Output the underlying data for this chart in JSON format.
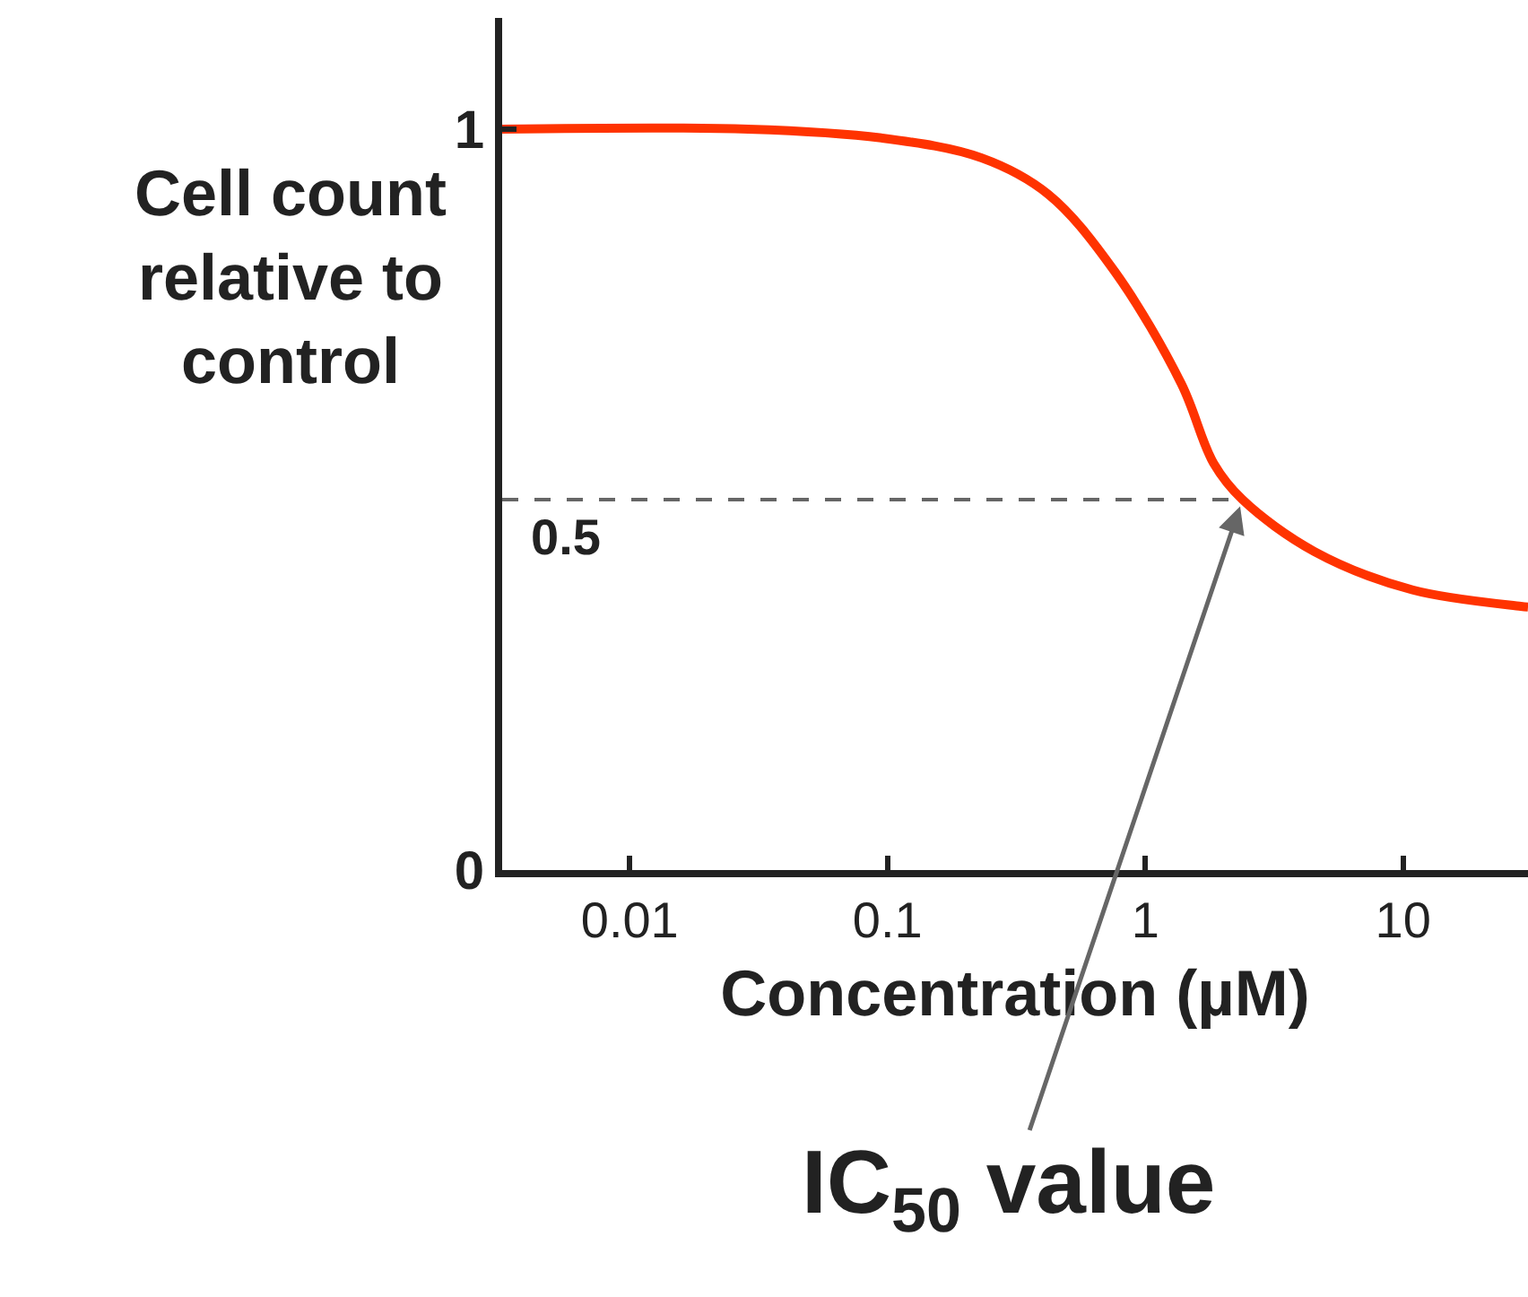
{
  "chart_data": {
    "type": "line",
    "xlabel": "Concentration (µM)",
    "ylabel": "Cell count relative to control",
    "log": "x",
    "x": [
      0.0032,
      0.0288,
      0.0946,
      0.232,
      0.42,
      0.76,
      1.38,
      1.84,
      2.38,
      4.52,
      10.9,
      28.6,
      30.5
    ],
    "series": [
      {
        "color": "#ff3300",
        "values": [
          1.0,
          1.0,
          0.988,
          0.961,
          0.912,
          0.808,
          0.656,
          0.549,
          0.5,
          0.43,
          0.378,
          0.356,
          0.355
        ]
      }
    ],
    "xlim": [
      0.0032,
      30.5
    ],
    "xticks": [
      0.01,
      0.1,
      1,
      10
    ],
    "ylim": [
      0,
      1.15
    ],
    "yticks": [
      0,
      1
    ],
    "grid": false,
    "marker": "none",
    "line_style": "solid",
    "ref_lines": [
      {
        "axis": "y",
        "value": 0.5,
        "label": "0.5",
        "color": "#666666",
        "line_style": "dashed"
      }
    ],
    "annotations": [
      {
        "text": "IC$_{50}$ value",
        "x": 2.38,
        "y": 0.5
      }
    ]
  }
}
